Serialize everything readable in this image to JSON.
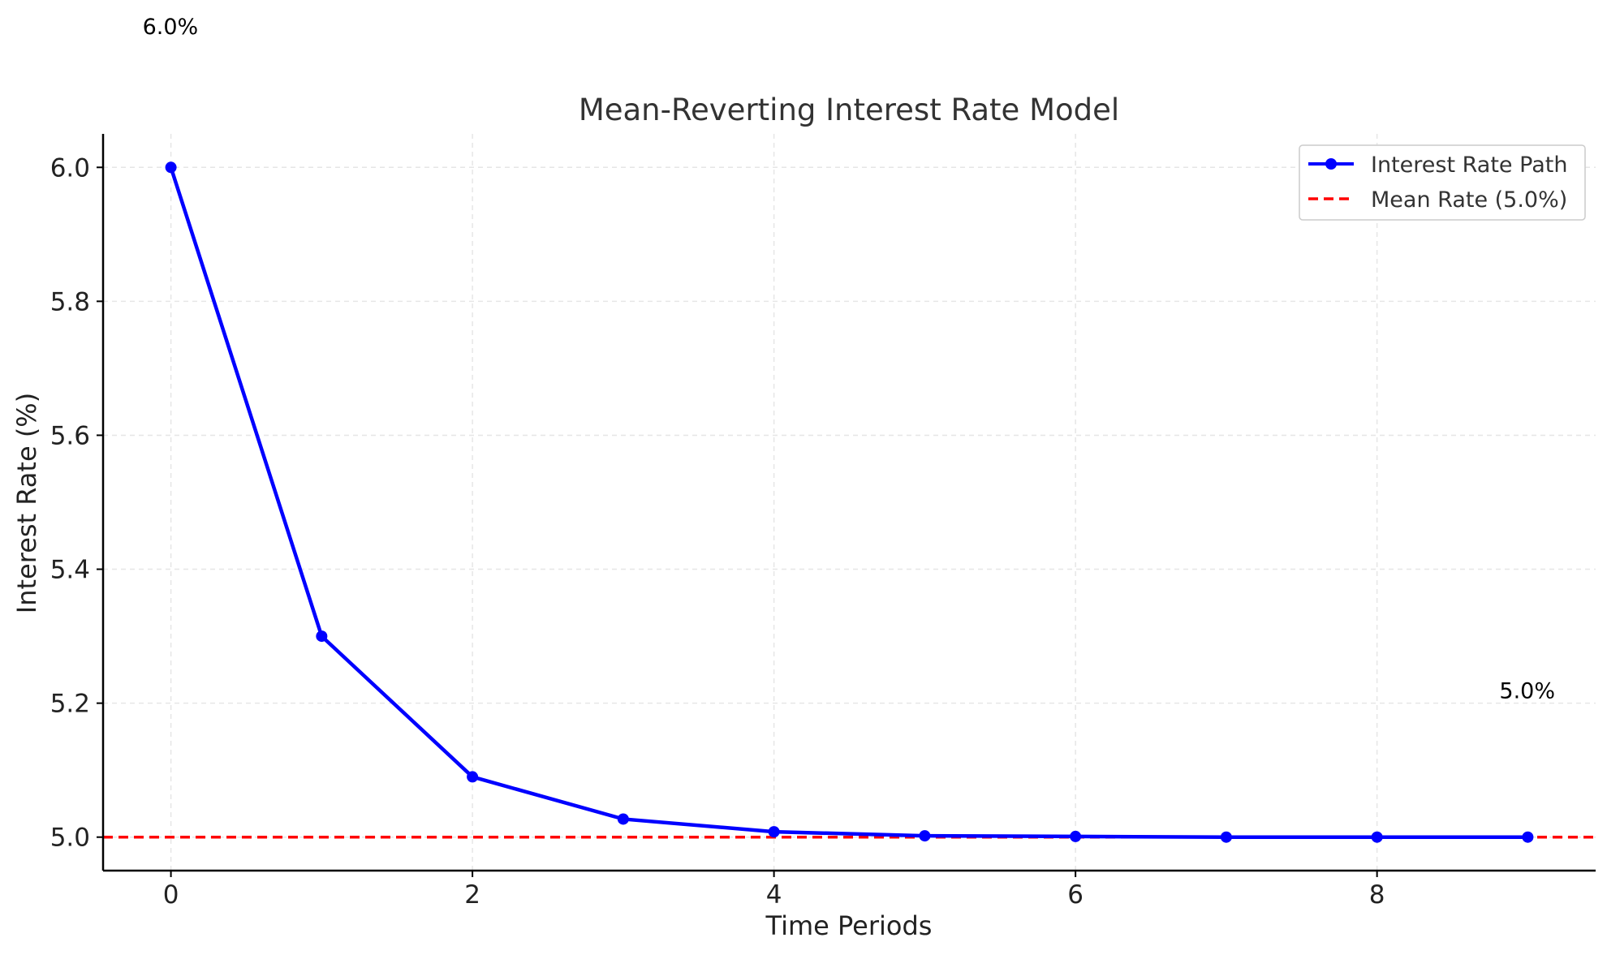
{
  "chart_data": {
    "type": "line",
    "title": "Mean-Reverting Interest Rate Model",
    "xlabel": "Time Periods",
    "ylabel": "Interest Rate (%)",
    "xlim": [
      -0.45,
      9.45
    ],
    "ylim": [
      4.95,
      6.05
    ],
    "xticks": [
      0,
      2,
      4,
      6,
      8
    ],
    "yticks": [
      5.0,
      5.2,
      5.4,
      5.6,
      5.8,
      6.0
    ],
    "xtick_labels": [
      "0",
      "2",
      "4",
      "6",
      "8"
    ],
    "ytick_labels": [
      "5.0",
      "5.2",
      "5.4",
      "5.6",
      "5.8",
      "6.0"
    ],
    "grid": true,
    "legend_position": "top-right",
    "series": [
      {
        "name": "Interest Rate Path",
        "color": "#0000ff",
        "style": "solid-with-markers",
        "x": [
          0,
          1,
          2,
          3,
          4,
          5,
          6,
          7,
          8,
          9
        ],
        "y": [
          6.0,
          5.3,
          5.09,
          5.027,
          5.008,
          5.002,
          5.001,
          5.0,
          5.0,
          5.0
        ]
      }
    ],
    "reference_lines": [
      {
        "name": "Mean Rate (5.0%)",
        "y": 5.0,
        "color": "#ff0000",
        "style": "dashed"
      }
    ],
    "annotations": [
      {
        "text": "6.0%",
        "x": 0,
        "y": 6.0
      },
      {
        "text": "5.0%",
        "x": 9,
        "y": 5.0
      }
    ]
  }
}
